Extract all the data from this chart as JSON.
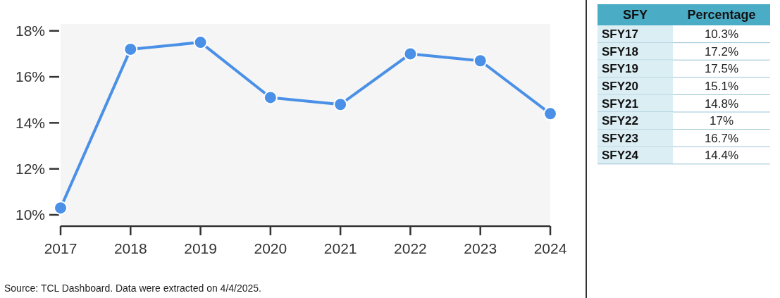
{
  "chart_data": [
    {
      "type": "line",
      "x": [
        2017,
        2018,
        2019,
        2020,
        2021,
        2022,
        2023,
        2024
      ],
      "series": [
        {
          "color": "#4a90e6",
          "values": [
            10.3,
            17.2,
            17.5,
            15.1,
            14.8,
            17,
            16.7,
            14.4
          ]
        }
      ],
      "xlim": [
        2017,
        2024
      ],
      "xticks": [
        2017,
        2018,
        2019,
        2020,
        2021,
        2022,
        2023,
        2024
      ],
      "ylim": [
        9.6,
        18.3
      ],
      "yticks": [
        {
          "value": 10,
          "label": "10%"
        },
        {
          "value": 12,
          "label": "12%"
        },
        {
          "value": 14,
          "label": "14%"
        },
        {
          "value": 16,
          "label": "16%"
        },
        {
          "value": 18,
          "label": "18%"
        }
      ],
      "marker": "circle",
      "line_style": "solid",
      "grid": false,
      "annotations": [
        "Source: TCL Dashboard. Data were extracted on 4/4/2025."
      ]
    },
    {
      "type": "other",
      "categories": [
        "SFY17",
        "SFY18",
        "SFY19",
        "SFY20",
        "SFY21",
        "SFY22",
        "SFY23",
        "SFY24"
      ],
      "value_labels": [
        "10.3%",
        "17.2%",
        "17.5%",
        "15.1%",
        "14.8%",
        "17%",
        "16.7%",
        "14.4%"
      ],
      "annotations": [
        "SFY",
        "Percentage"
      ]
    }
  ]
}
